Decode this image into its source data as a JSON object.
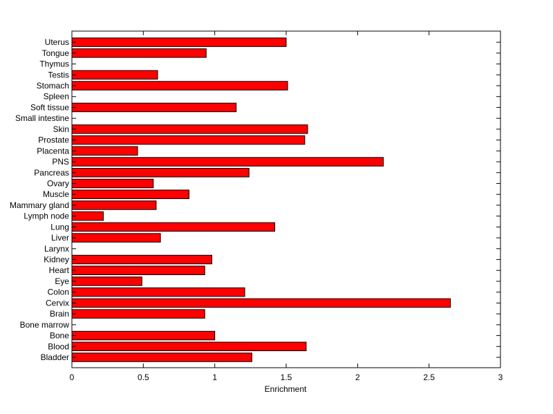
{
  "chart_data": {
    "type": "bar",
    "orientation": "horizontal",
    "categories": [
      "Bladder",
      "Blood",
      "Bone",
      "Bone marrow",
      "Brain",
      "Cervix",
      "Colon",
      "Eye",
      "Heart",
      "Kidney",
      "Larynx",
      "Liver",
      "Lung",
      "Lymph node",
      "Mammary gland",
      "Muscle",
      "Ovary",
      "Pancreas",
      "PNS",
      "Placenta",
      "Prostate",
      "Skin",
      "Small intestine",
      "Soft tissue",
      "Spleen",
      "Stomach",
      "Testis",
      "Thymus",
      "Tongue",
      "Uterus"
    ],
    "values": [
      1.26,
      1.64,
      1.0,
      0,
      0.93,
      2.65,
      1.21,
      0.49,
      0.93,
      0.98,
      0,
      0.62,
      1.42,
      0.22,
      0.59,
      0.82,
      0.57,
      1.24,
      2.18,
      0.46,
      1.63,
      1.65,
      0,
      1.15,
      0,
      1.51,
      0.6,
      0,
      0.94,
      1.5
    ],
    "title": "",
    "xlabel": "Enrichment",
    "ylabel": "",
    "xlim": [
      0,
      3
    ],
    "xticks": [
      "0",
      "0.5",
      "1",
      "1.5",
      "2",
      "2.5",
      "3"
    ],
    "xtick_values": [
      0,
      0.5,
      1,
      1.5,
      2,
      2.5,
      3
    ],
    "bar_color": "#ff0000",
    "bar_edge_color": "#000000",
    "grid": false,
    "legend": "none"
  }
}
